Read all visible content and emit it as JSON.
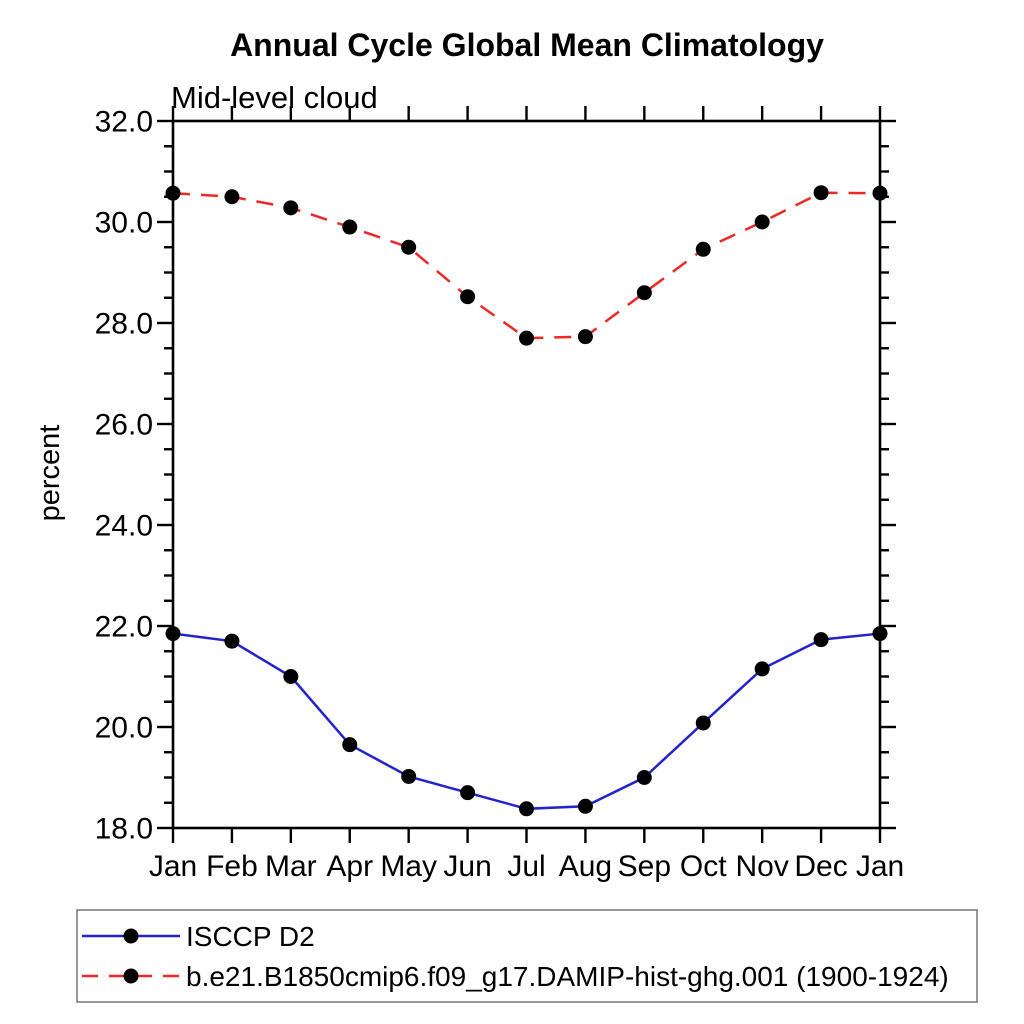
{
  "page": {
    "background": "#ffffff"
  },
  "chart": {
    "title": "Annual Cycle Global Mean Climatology",
    "subtitle": "Mid-level cloud",
    "ylabel": "percent"
  },
  "colors": {
    "axis": "#000000",
    "series1": "#2323cd",
    "series2": "#ee2727",
    "marker": "#000000",
    "legend_border": "#777777"
  },
  "legend": {
    "entries": [
      {
        "label": "ISCCP D2",
        "line": "solid",
        "color": "#2323cd",
        "marker": "filled-circle"
      },
      {
        "label": "b.e21.B1850cmip6.f09_g17.DAMIP-hist-ghg.001 (1900-1924)",
        "line": "dashed",
        "color": "#ee2727",
        "marker": "filled-circle"
      }
    ]
  },
  "chart_data": {
    "type": "line",
    "title": "Annual Cycle Global Mean Climatology",
    "subtitle": "Mid-level cloud",
    "xlabel": "",
    "ylabel": "percent",
    "categories": [
      "Jan",
      "Feb",
      "Mar",
      "Apr",
      "May",
      "Jun",
      "Jul",
      "Aug",
      "Sep",
      "Oct",
      "Nov",
      "Dec",
      "Jan"
    ],
    "ylim": [
      18.0,
      32.0
    ],
    "ytick_major_step": 2.0,
    "ytick_minor_step": 0.5,
    "ytick_labels": [
      "18.0",
      "20.0",
      "22.0",
      "24.0",
      "26.0",
      "28.0",
      "30.0",
      "32.0"
    ],
    "grid": false,
    "legend_position": "bottom",
    "series": [
      {
        "name": "ISCCP D2",
        "style": "solid",
        "color": "#2323cd",
        "marker": "filled-circle",
        "marker_color": "#000000",
        "values": [
          21.85,
          21.7,
          21.0,
          19.65,
          19.02,
          18.7,
          18.38,
          18.43,
          19.0,
          20.08,
          21.15,
          21.73,
          21.85
        ]
      },
      {
        "name": "b.e21.B1850cmip6.f09_g17.DAMIP-hist-ghg.001 (1900-1924)",
        "style": "dashed",
        "color": "#ee2727",
        "marker": "filled-circle",
        "marker_color": "#000000",
        "values": [
          30.57,
          30.5,
          30.28,
          29.9,
          29.5,
          28.52,
          27.7,
          27.73,
          28.6,
          29.46,
          30.0,
          30.58,
          30.57
        ]
      }
    ]
  }
}
